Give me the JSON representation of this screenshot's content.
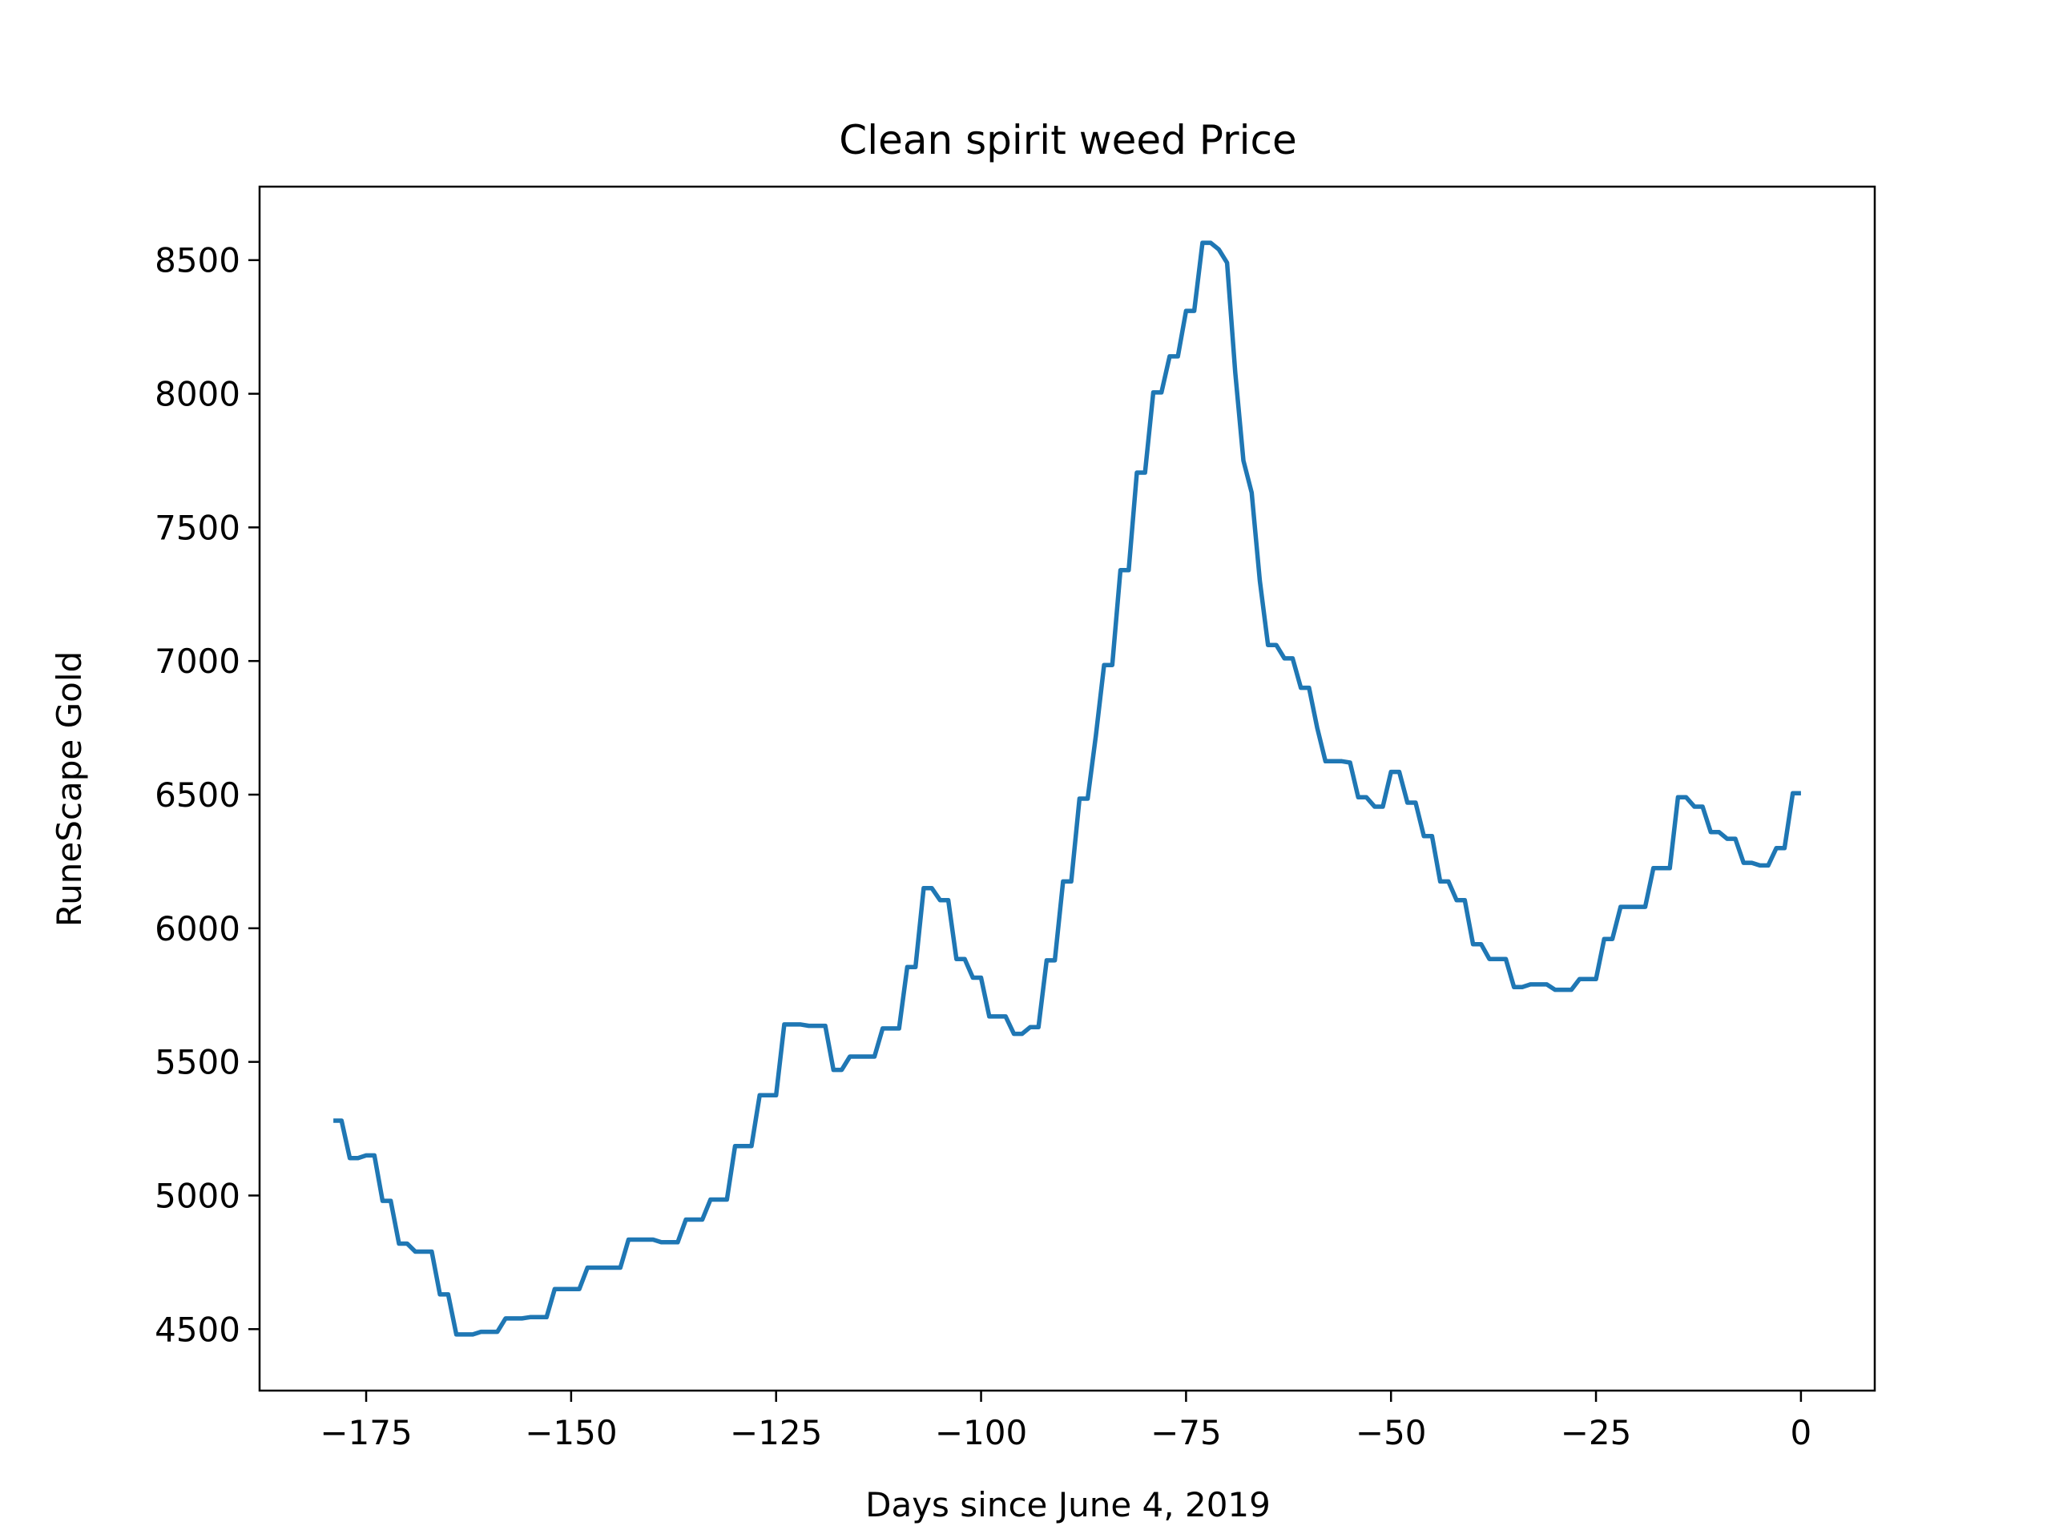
{
  "chart_data": {
    "type": "line",
    "title": "Clean spirit weed Price",
    "xlabel": "Days since June 4, 2019",
    "ylabel": "RuneScape Gold",
    "xlim": [
      -188,
      9
    ],
    "ylim": [
      4270,
      8775
    ],
    "xticks": [
      -175,
      -150,
      -125,
      -100,
      -75,
      -50,
      -25,
      0
    ],
    "xtick_labels": [
      "−175",
      "−150",
      "−125",
      "−100",
      "−75",
      "−50",
      "−25",
      "0"
    ],
    "yticks": [
      4500,
      5000,
      5500,
      6000,
      6500,
      7000,
      7500,
      8000,
      8500
    ],
    "ytick_labels": [
      "4500",
      "5000",
      "5500",
      "6000",
      "6500",
      "7000",
      "7500",
      "8000",
      "8500"
    ],
    "grid": false,
    "series": [
      {
        "color": "#1f77b4",
        "x": [
          -179,
          -178,
          -177,
          -176,
          -175,
          -174,
          -173,
          -172,
          -171,
          -170,
          -169,
          -168,
          -167,
          -166,
          -165,
          -164,
          -163,
          -162,
          -161,
          -160,
          -159,
          -158,
          -157,
          -156,
          -155,
          -154,
          -153,
          -152,
          -151,
          -150,
          -149,
          -148,
          -147,
          -146,
          -145,
          -144,
          -143,
          -142,
          -141,
          -140,
          -139,
          -138,
          -137,
          -136,
          -135,
          -134,
          -133,
          -132,
          -131,
          -130,
          -129,
          -128,
          -127,
          -126,
          -125,
          -124,
          -123,
          -122,
          -121,
          -120,
          -119,
          -118,
          -117,
          -116,
          -115,
          -114,
          -113,
          -112,
          -111,
          -110,
          -109,
          -108,
          -107,
          -106,
          -105,
          -104,
          -103,
          -102,
          -101,
          -100,
          -99,
          -98,
          -97,
          -96,
          -95,
          -94,
          -93,
          -92,
          -91,
          -90,
          -89,
          -88,
          -87,
          -86,
          -85,
          -84,
          -83,
          -82,
          -81,
          -80,
          -79,
          -78,
          -77,
          -76,
          -75,
          -74,
          -73,
          -72,
          -71,
          -70,
          -69,
          -68,
          -67,
          -66,
          -65,
          -64,
          -63,
          -62,
          -61,
          -60,
          -59,
          -58,
          -57,
          -56,
          -55,
          -54,
          -53,
          -52,
          -51,
          -50,
          -49,
          -48,
          -47,
          -46,
          -45,
          -44,
          -43,
          -42,
          -41,
          -40,
          -39,
          -38,
          -37,
          -36,
          -35,
          -34,
          -33,
          -32,
          -31,
          -30,
          -29,
          -28,
          -27,
          -26,
          -25,
          -24,
          -23,
          -22,
          -21,
          -20,
          -19,
          -18,
          -17,
          -16,
          -15,
          -14,
          -13,
          -12,
          -11,
          -10,
          -9,
          -8,
          -7,
          -6,
          -5,
          -4,
          -3,
          -2,
          -1,
          0
        ],
        "y": [
          5280,
          5280,
          5140,
          5140,
          5150,
          5150,
          4980,
          4980,
          4820,
          4820,
          4790,
          4790,
          4790,
          4630,
          4630,
          4480,
          4480,
          4480,
          4490,
          4490,
          4490,
          4540,
          4540,
          4540,
          4545,
          4545,
          4545,
          4650,
          4650,
          4650,
          4650,
          4730,
          4730,
          4730,
          4730,
          4730,
          4835,
          4835,
          4835,
          4835,
          4825,
          4825,
          4825,
          4910,
          4910,
          4910,
          4985,
          4985,
          4985,
          5185,
          5185,
          5185,
          5375,
          5375,
          5375,
          5640,
          5640,
          5640,
          5635,
          5635,
          5635,
          5470,
          5470,
          5520,
          5520,
          5520,
          5520,
          5625,
          5625,
          5625,
          5855,
          5855,
          6150,
          6150,
          6105,
          6105,
          5885,
          5885,
          5815,
          5815,
          5670,
          5670,
          5670,
          5605,
          5605,
          5630,
          5630,
          5880,
          5880,
          6175,
          6175,
          6485,
          6485,
          6720,
          6985,
          6985,
          7340,
          7340,
          7705,
          7705,
          8005,
          8005,
          8140,
          8140,
          8310,
          8310,
          8565,
          8565,
          8540,
          8490,
          8080,
          7750,
          7630,
          7300,
          7060,
          7060,
          7010,
          7010,
          6900,
          6900,
          6750,
          6625,
          6625,
          6625,
          6620,
          6490,
          6490,
          6455,
          6455,
          6585,
          6585,
          6470,
          6470,
          6345,
          6345,
          6175,
          6175,
          6105,
          6105,
          5940,
          5940,
          5885,
          5885,
          5885,
          5780,
          5780,
          5790,
          5790,
          5790,
          5770,
          5770,
          5770,
          5810,
          5810,
          5810,
          5960,
          5960,
          6080,
          6080,
          6080,
          6080,
          6225,
          6225,
          6225,
          6490,
          6490,
          6455,
          6455,
          6360,
          6360,
          6335,
          6335,
          6245,
          6245,
          6235,
          6235,
          6300,
          6300,
          6505,
          6505
        ]
      }
    ]
  }
}
